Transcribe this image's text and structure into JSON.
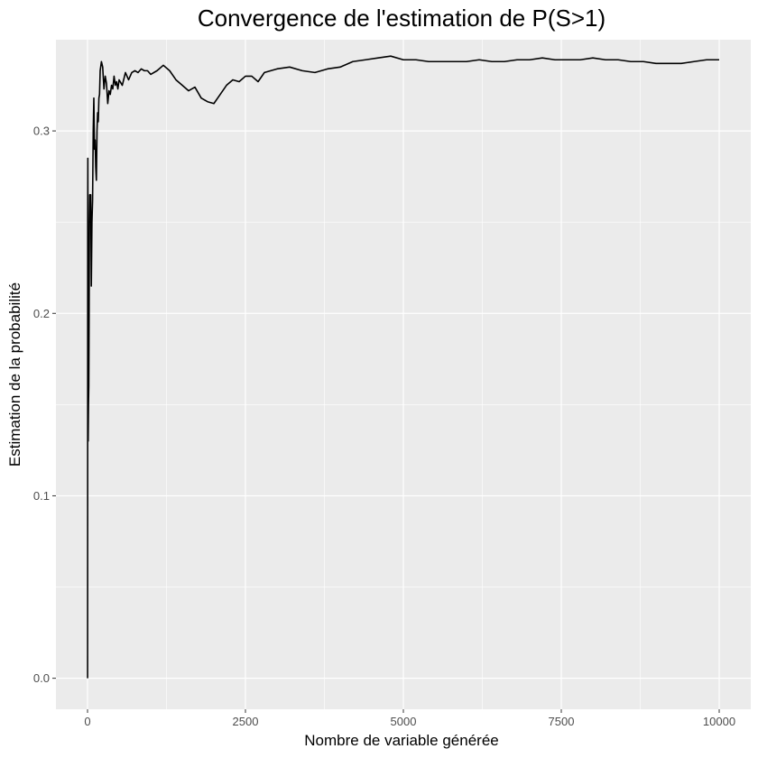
{
  "chart_data": {
    "type": "line",
    "title": "Convergence de l'estimation de P(S>1)",
    "xlabel": "Nombre de variable générée",
    "ylabel": "Estimation de la probabilité",
    "xlim": [
      -500,
      10500
    ],
    "ylim": [
      -0.017,
      0.35
    ],
    "x_ticks": [
      0,
      2500,
      5000,
      7500,
      10000
    ],
    "x_tick_labels": [
      "0",
      "2500",
      "5000",
      "7500",
      "10000"
    ],
    "y_ticks": [
      0.0,
      0.1,
      0.2,
      0.3
    ],
    "y_tick_labels": [
      "0.0",
      "0.1",
      "0.2",
      "0.3"
    ],
    "grid": true,
    "legend": "none",
    "colors": {
      "panel_background": "#ebebeb",
      "grid_major": "#ffffff",
      "line": "#000000"
    },
    "series": [
      {
        "x": [
          1,
          2,
          3,
          5,
          8,
          10,
          15,
          20,
          25,
          30,
          35,
          40,
          45,
          50,
          55,
          60,
          70,
          80,
          90,
          100,
          110,
          120,
          130,
          140,
          150,
          160,
          170,
          180,
          190,
          200,
          220,
          240,
          260,
          280,
          300,
          320,
          340,
          360,
          380,
          400,
          420,
          440,
          460,
          480,
          500,
          550,
          600,
          650,
          700,
          750,
          800,
          850,
          900,
          950,
          1000,
          1100,
          1200,
          1300,
          1400,
          1500,
          1600,
          1700,
          1800,
          1900,
          2000,
          2100,
          2200,
          2300,
          2400,
          2500,
          2600,
          2700,
          2800,
          2900,
          3000,
          3200,
          3400,
          3600,
          3800,
          4000,
          4200,
          4400,
          4600,
          4800,
          5000,
          5200,
          5400,
          5600,
          5800,
          6000,
          6200,
          6400,
          6600,
          6800,
          7000,
          7200,
          7400,
          7600,
          7800,
          8000,
          8200,
          8400,
          8600,
          8800,
          9000,
          9200,
          9400,
          9600,
          9800,
          10000
        ],
        "y": [
          0.0,
          0.1,
          0.25,
          0.285,
          0.2,
          0.13,
          0.15,
          0.16,
          0.2,
          0.25,
          0.265,
          0.25,
          0.26,
          0.265,
          0.24,
          0.215,
          0.25,
          0.262,
          0.3,
          0.318,
          0.29,
          0.295,
          0.28,
          0.273,
          0.3,
          0.31,
          0.305,
          0.318,
          0.32,
          0.333,
          0.338,
          0.335,
          0.323,
          0.33,
          0.326,
          0.315,
          0.322,
          0.32,
          0.325,
          0.323,
          0.33,
          0.325,
          0.327,
          0.323,
          0.328,
          0.325,
          0.332,
          0.328,
          0.332,
          0.333,
          0.332,
          0.334,
          0.333,
          0.333,
          0.331,
          0.333,
          0.336,
          0.333,
          0.328,
          0.325,
          0.322,
          0.324,
          0.318,
          0.316,
          0.315,
          0.32,
          0.325,
          0.328,
          0.327,
          0.33,
          0.33,
          0.327,
          0.332,
          0.333,
          0.334,
          0.335,
          0.333,
          0.332,
          0.334,
          0.335,
          0.338,
          0.339,
          0.34,
          0.341,
          0.339,
          0.339,
          0.338,
          0.338,
          0.338,
          0.338,
          0.339,
          0.338,
          0.338,
          0.339,
          0.339,
          0.34,
          0.339,
          0.339,
          0.339,
          0.34,
          0.339,
          0.339,
          0.338,
          0.338,
          0.337,
          0.337,
          0.337,
          0.338,
          0.339,
          0.339
        ]
      }
    ]
  }
}
